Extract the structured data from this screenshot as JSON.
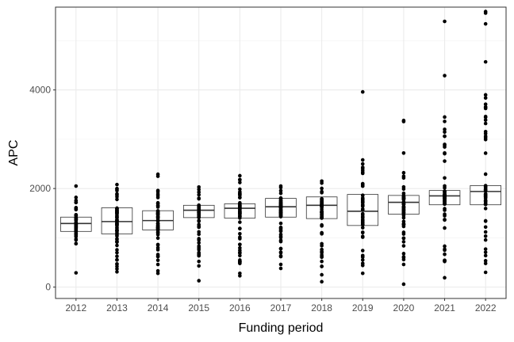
{
  "chart_data": {
    "type": "box",
    "title": "",
    "xlabel": "Funding period",
    "ylabel": "APC",
    "ylim": [
      -230,
      5680
    ],
    "yticks": [
      0,
      2000,
      4000
    ],
    "grid": true,
    "theme": "white background, light grey gridlines, black panel border",
    "categories": [
      "2012",
      "2013",
      "2014",
      "2015",
      "2016",
      "2017",
      "2018",
      "2019",
      "2020",
      "2021",
      "2022"
    ],
    "boxes": [
      {
        "q1": 1130,
        "median": 1290,
        "q3": 1420
      },
      {
        "q1": 1080,
        "median": 1330,
        "q3": 1610
      },
      {
        "q1": 1160,
        "median": 1350,
        "q3": 1550
      },
      {
        "q1": 1410,
        "median": 1560,
        "q3": 1660
      },
      {
        "q1": 1400,
        "median": 1600,
        "q3": 1690
      },
      {
        "q1": 1420,
        "median": 1630,
        "q3": 1800
      },
      {
        "q1": 1390,
        "median": 1660,
        "q3": 1830
      },
      {
        "q1": 1250,
        "median": 1540,
        "q3": 1880
      },
      {
        "q1": 1480,
        "median": 1720,
        "q3": 1860
      },
      {
        "q1": 1670,
        "median": 1850,
        "q3": 1960
      },
      {
        "q1": 1670,
        "median": 1940,
        "q3": 2060
      }
    ],
    "points": [
      {
        "min": 880,
        "max": 1720,
        "extra": [
          290,
          2050,
          1820,
          1760
        ]
      },
      {
        "min": 420,
        "max": 2000,
        "extra": [
          310,
          370,
          2080,
          550,
          700
        ]
      },
      {
        "min": 460,
        "max": 1960,
        "extra": [
          280,
          330,
          2250,
          2290,
          620
        ]
      },
      {
        "min": 520,
        "max": 1980,
        "extra": [
          130,
          430,
          2030,
          760
        ]
      },
      {
        "min": 480,
        "max": 2180,
        "extra": [
          230,
          280,
          2260,
          640
        ]
      },
      {
        "min": 620,
        "max": 2020,
        "extra": [
          380,
          460,
          2050,
          780
        ]
      },
      {
        "min": 420,
        "max": 2110,
        "extra": [
          110,
          250,
          2150,
          620
        ]
      },
      {
        "min": 440,
        "max": 2500,
        "extra": [
          280,
          3960,
          2580,
          2430,
          630
        ]
      },
      {
        "min": 460,
        "max": 2320,
        "extra": [
          60,
          3360,
          3380,
          2720,
          680
        ]
      },
      {
        "min": 520,
        "max": 3450,
        "extra": [
          190,
          4290,
          5390,
          3200,
          3060,
          2720
        ]
      },
      {
        "min": 480,
        "max": 3900,
        "extra": [
          300,
          4570,
          5340,
          5560,
          5590,
          3650,
          3460,
          3320
        ]
      }
    ]
  }
}
